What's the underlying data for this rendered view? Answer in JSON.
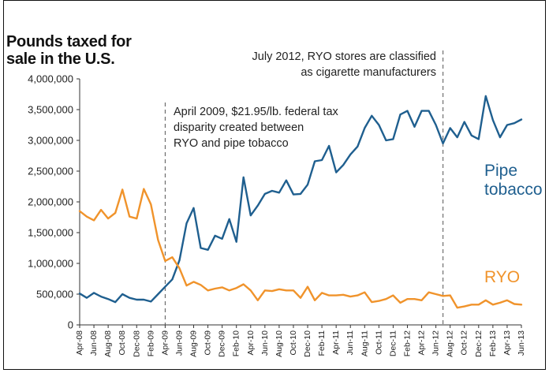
{
  "chart_data": {
    "type": "line",
    "title_lines": [
      "Pounds taxed for",
      "sale in the U.S."
    ],
    "ylim": [
      0,
      4000000
    ],
    "yticks": [
      0,
      500000,
      1000000,
      1500000,
      2000000,
      2500000,
      3000000,
      3500000,
      4000000
    ],
    "ytick_labels": [
      "0",
      "500,000",
      "1,000,000",
      "1,500,000",
      "2,000,000",
      "2,500,000",
      "3,000,000",
      "3,500,000",
      "4,000,000"
    ],
    "x_labels": [
      "Apr-08",
      "Jun-08",
      "Aug-08",
      "Oct-08",
      "Dec-08",
      "Feb-09",
      "Apr-09",
      "Jun-09",
      "Aug-09",
      "Oct-09",
      "Dec-09",
      "Feb-10",
      "Apr-10",
      "Jun-10",
      "Aug-10",
      "Oct-10",
      "Dec-10",
      "Feb-11",
      "Apr-11",
      "Jun-11",
      "Aug-11",
      "Oct-11",
      "Dec-11",
      "Feb-12",
      "Apr-12",
      "Jun-12",
      "Aug-12",
      "Oct-12",
      "Dec-12",
      "Feb-13",
      "Apr-13",
      "Jun-13"
    ],
    "n_points": 63,
    "series": [
      {
        "name": "Pipe tobacco",
        "label_lines": [
          "Pipe",
          "tobacco"
        ],
        "color": "#1f5f8f",
        "values": [
          510000,
          440000,
          520000,
          460000,
          420000,
          370000,
          500000,
          440000,
          410000,
          410000,
          380000,
          500000,
          620000,
          740000,
          1050000,
          1650000,
          1900000,
          1250000,
          1220000,
          1450000,
          1400000,
          1720000,
          1350000,
          2400000,
          1780000,
          1940000,
          2130000,
          2180000,
          2150000,
          2350000,
          2120000,
          2130000,
          2280000,
          2660000,
          2680000,
          2910000,
          2480000,
          2600000,
          2770000,
          2900000,
          3200000,
          3400000,
          3250000,
          3000000,
          3020000,
          3420000,
          3480000,
          3220000,
          3480000,
          3480000,
          3250000,
          2950000,
          3200000,
          3050000,
          3300000,
          3080000,
          3020000,
          3720000,
          3330000,
          3050000,
          3250000,
          3280000,
          3340000
        ]
      },
      {
        "name": "RYO",
        "label_lines": [
          "RYO"
        ],
        "color": "#f0932b",
        "values": [
          1850000,
          1760000,
          1700000,
          1870000,
          1730000,
          1820000,
          2200000,
          1760000,
          1730000,
          2210000,
          1960000,
          1380000,
          1040000,
          1100000,
          920000,
          640000,
          700000,
          650000,
          560000,
          590000,
          610000,
          560000,
          600000,
          660000,
          560000,
          400000,
          560000,
          550000,
          580000,
          560000,
          560000,
          440000,
          620000,
          400000,
          520000,
          480000,
          480000,
          490000,
          460000,
          480000,
          530000,
          370000,
          390000,
          420000,
          480000,
          360000,
          420000,
          420000,
          400000,
          530000,
          500000,
          470000,
          480000,
          280000,
          300000,
          330000,
          330000,
          400000,
          330000,
          360000,
          400000,
          340000,
          330000
        ]
      }
    ],
    "annotations": [
      {
        "lines": [
          "April 2009, $21.95/lb. federal tax",
          "disparity created between",
          "RYO and pipe tobacco"
        ],
        "at_index": 12
      },
      {
        "lines": [
          "July 2012, RYO stores are classified",
          "as cigarette manufacturers"
        ],
        "at_index": 51
      }
    ],
    "grid": false,
    "legend": "inline labels"
  }
}
